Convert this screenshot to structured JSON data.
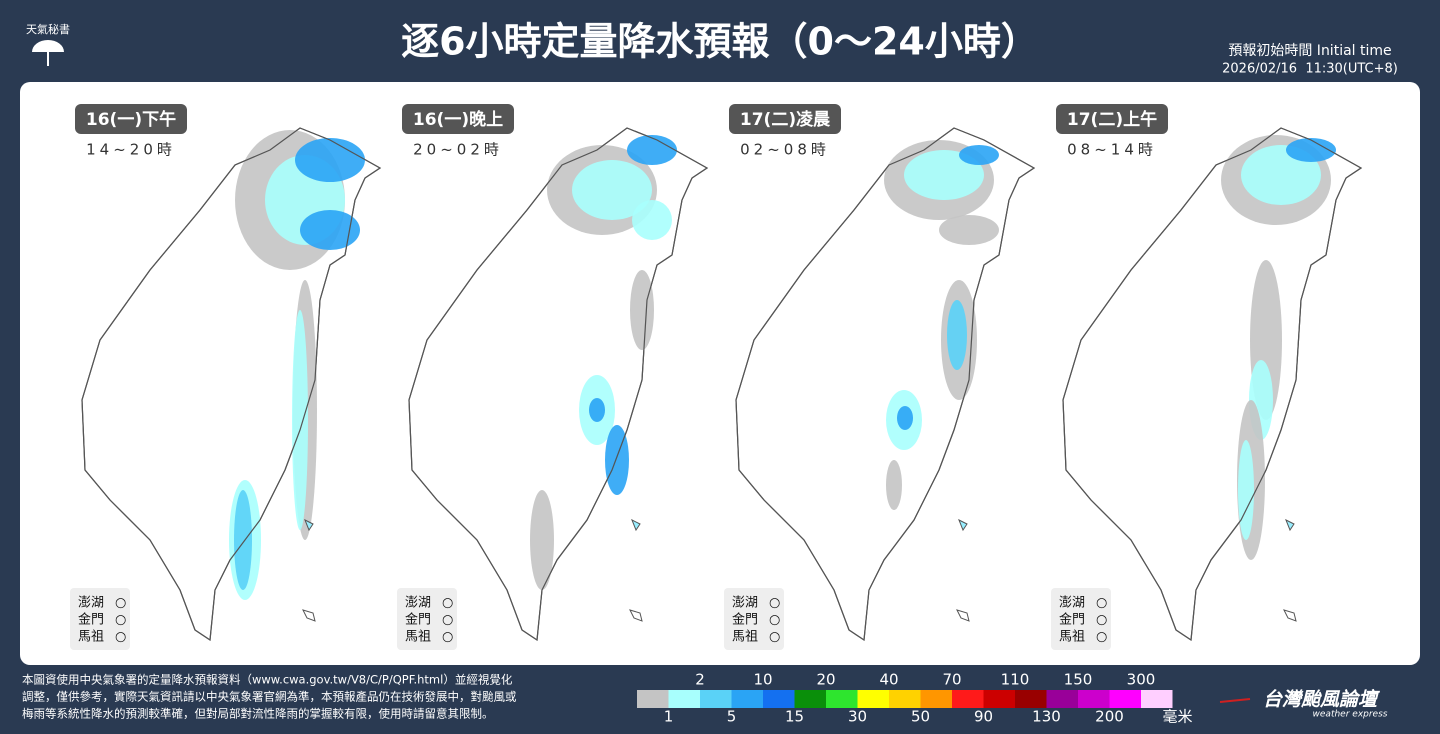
{
  "header": {
    "logo": "天氣秘書",
    "title": "逐6小時定量降水預報（0～24小時）",
    "initial_time_label": "預報初始時間 Initial time",
    "initial_time": "2026/02/16  11:30(UTC+8)"
  },
  "panels": [
    {
      "label": "16(一)下午",
      "period": "14~20時",
      "islands": [
        {
          "name": "澎湖",
          "status": "○"
        },
        {
          "name": "金門",
          "status": "○"
        },
        {
          "name": "馬祖",
          "status": "○"
        }
      ]
    },
    {
      "label": "16(一)晚上",
      "period": "20~02時",
      "islands": [
        {
          "name": "澎湖",
          "status": "○"
        },
        {
          "name": "金門",
          "status": "○"
        },
        {
          "name": "馬祖",
          "status": "○"
        }
      ]
    },
    {
      "label": "17(二)凌晨",
      "period": "02~08時",
      "islands": [
        {
          "name": "澎湖",
          "status": "○"
        },
        {
          "name": "金門",
          "status": "○"
        },
        {
          "name": "馬祖",
          "status": "○"
        }
      ]
    },
    {
      "label": "17(二)上午",
      "period": "08~14時",
      "islands": [
        {
          "name": "澎湖",
          "status": "○"
        },
        {
          "name": "金門",
          "status": "○"
        },
        {
          "name": "馬祖",
          "status": "○"
        }
      ]
    }
  ],
  "footer": {
    "lines": [
      "本圖資使用中央氣象署的定量降水預報資料（www.cwa.gov.tw/V8/C/P/QPF.html）並經視覺化",
      "調整，僅供參考，實際天氣資訊請以中央氣象署官網為準，本預報產品仍在技術發展中，對颱風或",
      "梅雨等系統性降水的預測較準確，但對局部對流性降雨的掌握較有限，使用時請留意其限制。"
    ]
  },
  "scale": {
    "ticks": [
      1,
      2,
      5,
      10,
      15,
      20,
      30,
      40,
      50,
      70,
      90,
      110,
      130,
      150,
      200,
      300
    ],
    "unit": "毫米",
    "colors": [
      "#c4c4c4",
      "#a8fffd",
      "#5ad2f7",
      "#2aa4f5",
      "#1470f0",
      "#0a8f0a",
      "#2ee52e",
      "#ffff00",
      "#ffd200",
      "#ff9600",
      "#ff1a1a",
      "#cc0000",
      "#990000",
      "#990099",
      "#cc00cc",
      "#ff00ff",
      "#ffcfff"
    ]
  },
  "brand": {
    "name": "台灣颱風論壇",
    "tagline": "weather express"
  }
}
